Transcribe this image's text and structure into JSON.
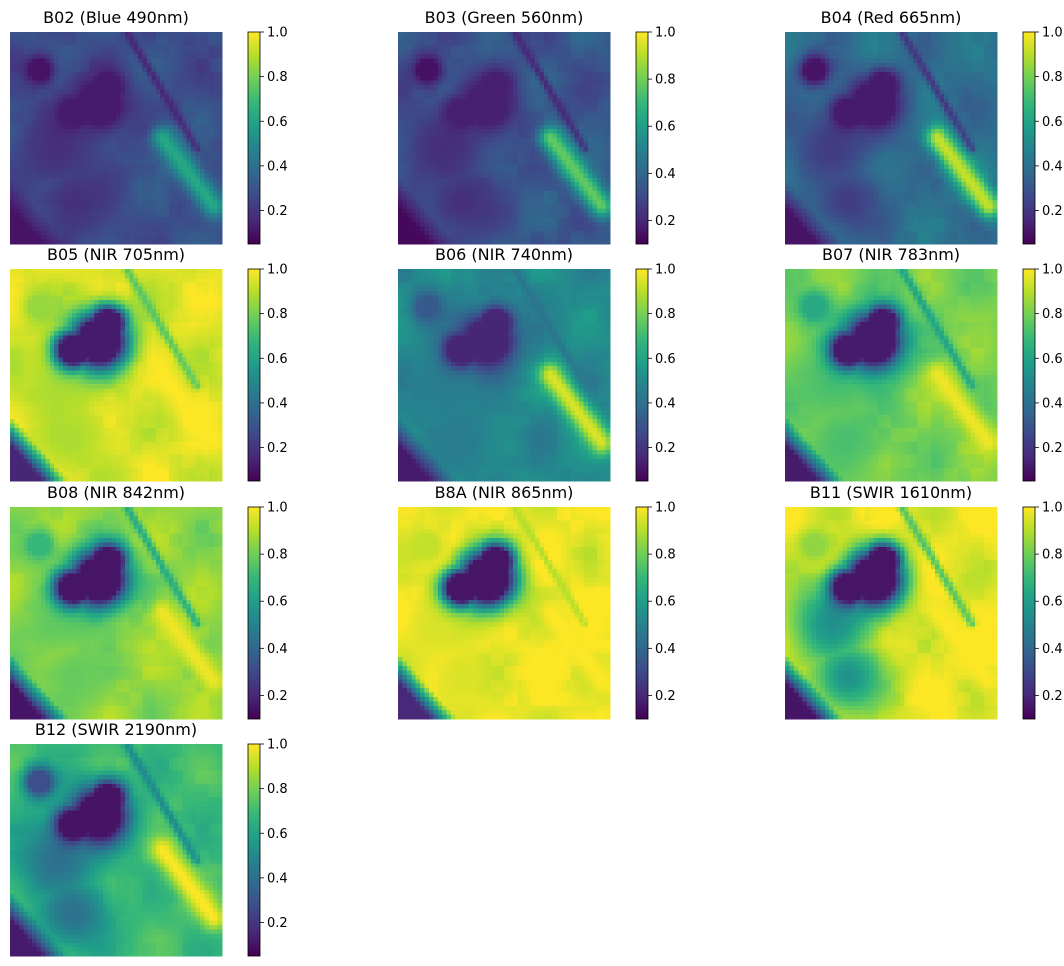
{
  "figure": {
    "colormap": "viridis",
    "colormap_stops": [
      "#440154",
      "#482878",
      "#3e4989",
      "#31688e",
      "#26828e",
      "#1f9e89",
      "#35b779",
      "#6ece58",
      "#b5de2b",
      "#fde725"
    ]
  },
  "chart_data": [
    {
      "type": "heatmap",
      "title": "B02 (Blue 490nm)",
      "band": "B02",
      "colorbar": {
        "min": 0.05,
        "max": 1.0,
        "ticks": [
          0.2,
          0.4,
          0.6,
          0.8,
          1.0
        ],
        "tick_labels": [
          "0.2",
          "0.4",
          "0.6",
          "0.8",
          "1.0"
        ]
      },
      "field": {
        "base": 0.28,
        "lake": 0.12,
        "pond": 0.1,
        "strip": 0.62,
        "west": 0.18,
        "roads": 0.15,
        "corner": 0.1
      }
    },
    {
      "type": "heatmap",
      "title": "B03 (Green 560nm)",
      "band": "B03",
      "colorbar": {
        "min": 0.1,
        "max": 1.0,
        "ticks": [
          0.2,
          0.4,
          0.6,
          0.8,
          1.0
        ],
        "tick_labels": [
          "0.2",
          "0.4",
          "0.6",
          "0.8",
          "1.0"
        ]
      },
      "field": {
        "base": 0.34,
        "lake": 0.18,
        "pond": 0.14,
        "strip": 0.78,
        "west": 0.22,
        "roads": 0.2,
        "corner": 0.12
      }
    },
    {
      "type": "heatmap",
      "title": "B04 (Red 665nm)",
      "band": "B04",
      "colorbar": {
        "min": 0.05,
        "max": 1.0,
        "ticks": [
          0.2,
          0.4,
          0.6,
          0.8,
          1.0
        ],
        "tick_labels": [
          "0.2",
          "0.4",
          "0.6",
          "0.8",
          "1.0"
        ]
      },
      "field": {
        "base": 0.4,
        "lake": 0.12,
        "pond": 0.1,
        "strip": 0.92,
        "west": 0.22,
        "roads": 0.2,
        "corner": 0.1
      }
    },
    {
      "type": "heatmap",
      "title": "B05 (NIR 705nm)",
      "band": "B05",
      "colorbar": {
        "min": 0.05,
        "max": 1.0,
        "ticks": [
          0.2,
          0.4,
          0.6,
          0.8,
          1.0
        ],
        "tick_labels": [
          "0.2",
          "0.4",
          "0.6",
          "0.8",
          "1.0"
        ]
      },
      "field": {
        "base": 0.95,
        "lake": 0.12,
        "pond": 0.85,
        "strip": 1.0,
        "west": 0.88,
        "roads": 0.75,
        "corner": 0.15
      }
    },
    {
      "type": "heatmap",
      "title": "B06 (NIR 740nm)",
      "band": "B06",
      "colorbar": {
        "min": 0.05,
        "max": 1.0,
        "ticks": [
          0.2,
          0.4,
          0.6,
          0.8,
          1.0
        ],
        "tick_labels": [
          "0.2",
          "0.4",
          "0.6",
          "0.8",
          "1.0"
        ]
      },
      "field": {
        "base": 0.5,
        "lake": 0.15,
        "pond": 0.32,
        "strip": 0.95,
        "west": 0.45,
        "roads": 0.42,
        "corner": 0.12
      }
    },
    {
      "type": "heatmap",
      "title": "B07 (NIR 783nm)",
      "band": "B07",
      "colorbar": {
        "min": 0.05,
        "max": 1.0,
        "ticks": [
          0.2,
          0.4,
          0.6,
          0.8,
          1.0
        ],
        "tick_labels": [
          "0.2",
          "0.4",
          "0.6",
          "0.8",
          "1.0"
        ]
      },
      "field": {
        "base": 0.8,
        "lake": 0.12,
        "pond": 0.62,
        "strip": 0.98,
        "west": 0.72,
        "roads": 0.6,
        "corner": 0.12
      }
    },
    {
      "type": "heatmap",
      "title": "B08 (NIR 842nm)",
      "band": "B08",
      "colorbar": {
        "min": 0.1,
        "max": 1.0,
        "ticks": [
          0.2,
          0.4,
          0.6,
          0.8,
          1.0
        ],
        "tick_labels": [
          "0.2",
          "0.4",
          "0.6",
          "0.8",
          "1.0"
        ]
      },
      "field": {
        "base": 0.85,
        "lake": 0.15,
        "pond": 0.7,
        "strip": 0.98,
        "west": 0.78,
        "roads": 0.65,
        "corner": 0.15
      }
    },
    {
      "type": "heatmap",
      "title": "B8A (NIR 865nm)",
      "band": "B8A",
      "colorbar": {
        "min": 0.1,
        "max": 1.0,
        "ticks": [
          0.2,
          0.4,
          0.6,
          0.8,
          1.0
        ],
        "tick_labels": [
          "0.2",
          "0.4",
          "0.6",
          "0.8",
          "1.0"
        ]
      },
      "field": {
        "base": 0.98,
        "lake": 0.15,
        "pond": 0.92,
        "strip": 1.0,
        "west": 0.95,
        "roads": 0.9,
        "corner": 0.2
      }
    },
    {
      "type": "heatmap",
      "title": "B11 (SWIR 1610nm)",
      "band": "B11",
      "colorbar": {
        "min": 0.1,
        "max": 1.0,
        "ticks": [
          0.2,
          0.4,
          0.6,
          0.8,
          1.0
        ],
        "tick_labels": [
          "0.2",
          "0.4",
          "0.6",
          "0.8",
          "1.0"
        ]
      },
      "field": {
        "base": 0.97,
        "lake": 0.15,
        "pond": 0.85,
        "strip": 1.0,
        "west": 0.55,
        "roads": 0.75,
        "corner": 0.15
      }
    },
    {
      "type": "heatmap",
      "title": "B12 (SWIR 2190nm)",
      "band": "B12",
      "colorbar": {
        "min": 0.05,
        "max": 1.0,
        "ticks": [
          0.2,
          0.4,
          0.6,
          0.8,
          1.0
        ],
        "tick_labels": [
          "0.2",
          "0.4",
          "0.6",
          "0.8",
          "1.0"
        ]
      },
      "field": {
        "base": 0.7,
        "lake": 0.1,
        "pond": 0.28,
        "strip": 1.0,
        "west": 0.4,
        "roads": 0.5,
        "corner": 0.12
      }
    }
  ]
}
